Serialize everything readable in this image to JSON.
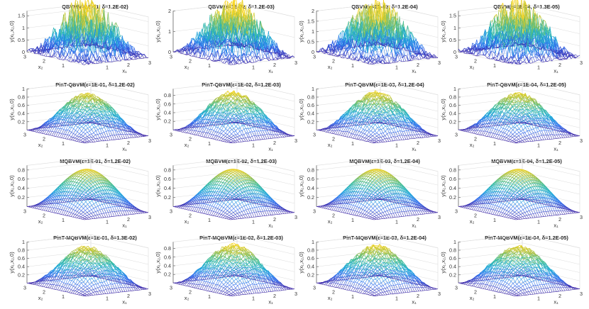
{
  "chart_data": {
    "type": "surface-grid",
    "rows": [
      "QBVM",
      "PinT-QBVM",
      "MQBVM",
      "PinT-MQBVM"
    ],
    "cols": [
      {
        "epsilon": "1E-01"
      },
      {
        "epsilon": "1E-02"
      },
      {
        "epsilon": "1E-03"
      },
      {
        "epsilon": "1E-04"
      }
    ],
    "panels": [
      {
        "title": "QBVM(ε=1E-01, δ=1.2E-02)",
        "method": "QBVM",
        "epsilon": "1E-01",
        "delta": "1.2E-02",
        "peak": 1.5,
        "noise": 0.9,
        "zticks": [
          "0",
          "0.5",
          "1",
          "1.5"
        ],
        "zlim": [
          0,
          1.7
        ]
      },
      {
        "title": "QBVM(ε=1E-02, δ=1.2E-03)",
        "method": "QBVM",
        "epsilon": "1E-02",
        "delta": "1.2E-03",
        "peak": 1.8,
        "noise": 1.0,
        "zticks": [
          "0",
          "1",
          "2"
        ],
        "zlim": [
          0,
          2.0
        ]
      },
      {
        "title": "QBVM(ε=1E-03, δ=1.2E-04)",
        "method": "QBVM",
        "epsilon": "1E-03",
        "delta": "1.2E-04",
        "peak": 1.8,
        "noise": 1.0,
        "zticks": [
          "0",
          "0.5",
          "1",
          "1.5",
          "2"
        ],
        "zlim": [
          0,
          2.0
        ]
      },
      {
        "title": "QBVM(ε=1E-04, δ=1.3E-05)",
        "method": "QBVM",
        "epsilon": "1E-04",
        "delta": "1.3E-05",
        "peak": 1.5,
        "noise": 0.9,
        "zticks": [
          "0",
          "0.5",
          "1",
          "1.5"
        ],
        "zlim": [
          0,
          1.7
        ]
      },
      {
        "title": "PinT-QBVM(ε=1E-01, δ=1.2E-02)",
        "method": "PinT-QBVM",
        "epsilon": "1E-01",
        "delta": "1.2E-02",
        "peak": 0.92,
        "noise": 0.06,
        "zticks": [
          "0.2",
          "0.4",
          "0.6",
          "0.8",
          "1"
        ],
        "zlim": [
          0,
          1.0
        ]
      },
      {
        "title": "PinT-QBVM(ε=1E-02, δ=1.2E-03)",
        "method": "PinT-QBVM",
        "epsilon": "1E-02",
        "delta": "1.2E-03",
        "peak": 0.92,
        "noise": 0.06,
        "zticks": [
          "0.2",
          "0.4",
          "0.6",
          "0.8"
        ],
        "zlim": [
          0,
          0.95
        ]
      },
      {
        "title": "PinT-QBVM(ε=1E-03, δ=1.2E-04)",
        "method": "PinT-QBVM",
        "epsilon": "1E-03",
        "delta": "1.2E-04",
        "peak": 0.95,
        "noise": 0.07,
        "zticks": [
          "0.2",
          "0.4",
          "0.6",
          "0.8",
          "1"
        ],
        "zlim": [
          0,
          1.0
        ]
      },
      {
        "title": "PinT-QBVM(ε=1E-04, δ=1.2E-05)",
        "method": "PinT-QBVM",
        "epsilon": "1E-04",
        "delta": "1.2E-05",
        "peak": 0.93,
        "noise": 0.06,
        "zticks": [
          "0.2",
          "0.4",
          "0.6",
          "0.8",
          "1"
        ],
        "zlim": [
          0,
          1.0
        ]
      },
      {
        "title": "MQBVM(ε=1E-01, δ=1.2E-02)",
        "method": "MQBVM",
        "epsilon": "1E-01",
        "delta": "1.2E-02",
        "peak": 0.88,
        "noise": 0.0,
        "zticks": [
          "0.2",
          "0.4",
          "0.6",
          "0.8"
        ],
        "zlim": [
          0,
          0.9
        ]
      },
      {
        "title": "MQBVM(ε=1E-02, δ=1.2E-03)",
        "method": "MQBVM",
        "epsilon": "1E-02",
        "delta": "1.2E-03",
        "peak": 0.88,
        "noise": 0.0,
        "zticks": [
          "0.2",
          "0.4",
          "0.6",
          "0.8"
        ],
        "zlim": [
          0,
          0.9
        ]
      },
      {
        "title": "MQBVM(ε=1E-03, δ=1.2E-04)",
        "method": "MQBVM",
        "epsilon": "1E-03",
        "delta": "1.2E-04",
        "peak": 0.88,
        "noise": 0.0,
        "zticks": [
          "0.2",
          "0.4",
          "0.6",
          "0.8"
        ],
        "zlim": [
          0,
          0.9
        ]
      },
      {
        "title": "MQBVM(ε=1E-04, δ=1.2E-05)",
        "method": "MQBVM",
        "epsilon": "1E-04",
        "delta": "1.2E-05",
        "peak": 0.88,
        "noise": 0.0,
        "zticks": [
          "0.2",
          "0.4",
          "0.6",
          "0.8"
        ],
        "zlim": [
          0,
          0.9
        ]
      },
      {
        "title": "PinT-MQBVM(ε=1E-01, δ=1.3E-02)",
        "method": "PinT-MQBVM",
        "epsilon": "1E-01",
        "delta": "1.3E-02",
        "peak": 0.92,
        "noise": 0.06,
        "zticks": [
          "0.2",
          "0.4",
          "0.6",
          "0.8",
          "1"
        ],
        "zlim": [
          0,
          1.0
        ]
      },
      {
        "title": "PinT-MQBVM(ε=1E-02, δ=1.2E-03)",
        "method": "PinT-MQBVM",
        "epsilon": "1E-02",
        "delta": "1.2E-03",
        "peak": 0.92,
        "noise": 0.06,
        "zticks": [
          "0.2",
          "0.4",
          "0.6",
          "0.8"
        ],
        "zlim": [
          0,
          0.95
        ]
      },
      {
        "title": "PinT-MQBVM(ε=1E-03, δ=1.2E-04)",
        "method": "PinT-MQBVM",
        "epsilon": "1E-03",
        "delta": "1.2E-04",
        "peak": 0.95,
        "noise": 0.07,
        "zticks": [
          "0.2",
          "0.4",
          "0.6",
          "0.8",
          "1"
        ],
        "zlim": [
          0,
          1.0
        ]
      },
      {
        "title": "PinT-MQBVM(ε=1E-04, δ=1.2E-05)",
        "method": "PinT-MQBVM",
        "epsilon": "1E-04",
        "delta": "1.2E-05",
        "peak": 0.93,
        "noise": 0.06,
        "zticks": [
          "0.2",
          "0.4",
          "0.6",
          "0.8",
          "1"
        ],
        "zlim": [
          0,
          1.0
        ]
      }
    ],
    "x1": {
      "label": "x₁",
      "ticks": [
        "1",
        "2",
        "3"
      ],
      "range": [
        0,
        3
      ]
    },
    "x2": {
      "label": "x₂",
      "ticks": [
        "3",
        "2",
        "1"
      ],
      "range": [
        0,
        3
      ]
    },
    "zlabel": "y(x₁,x₂,0)",
    "colormap": [
      "#3e26a8",
      "#2f6ef0",
      "#1ca9d9",
      "#3bbd9a",
      "#a7c043",
      "#f9d51e"
    ],
    "grid": true
  }
}
